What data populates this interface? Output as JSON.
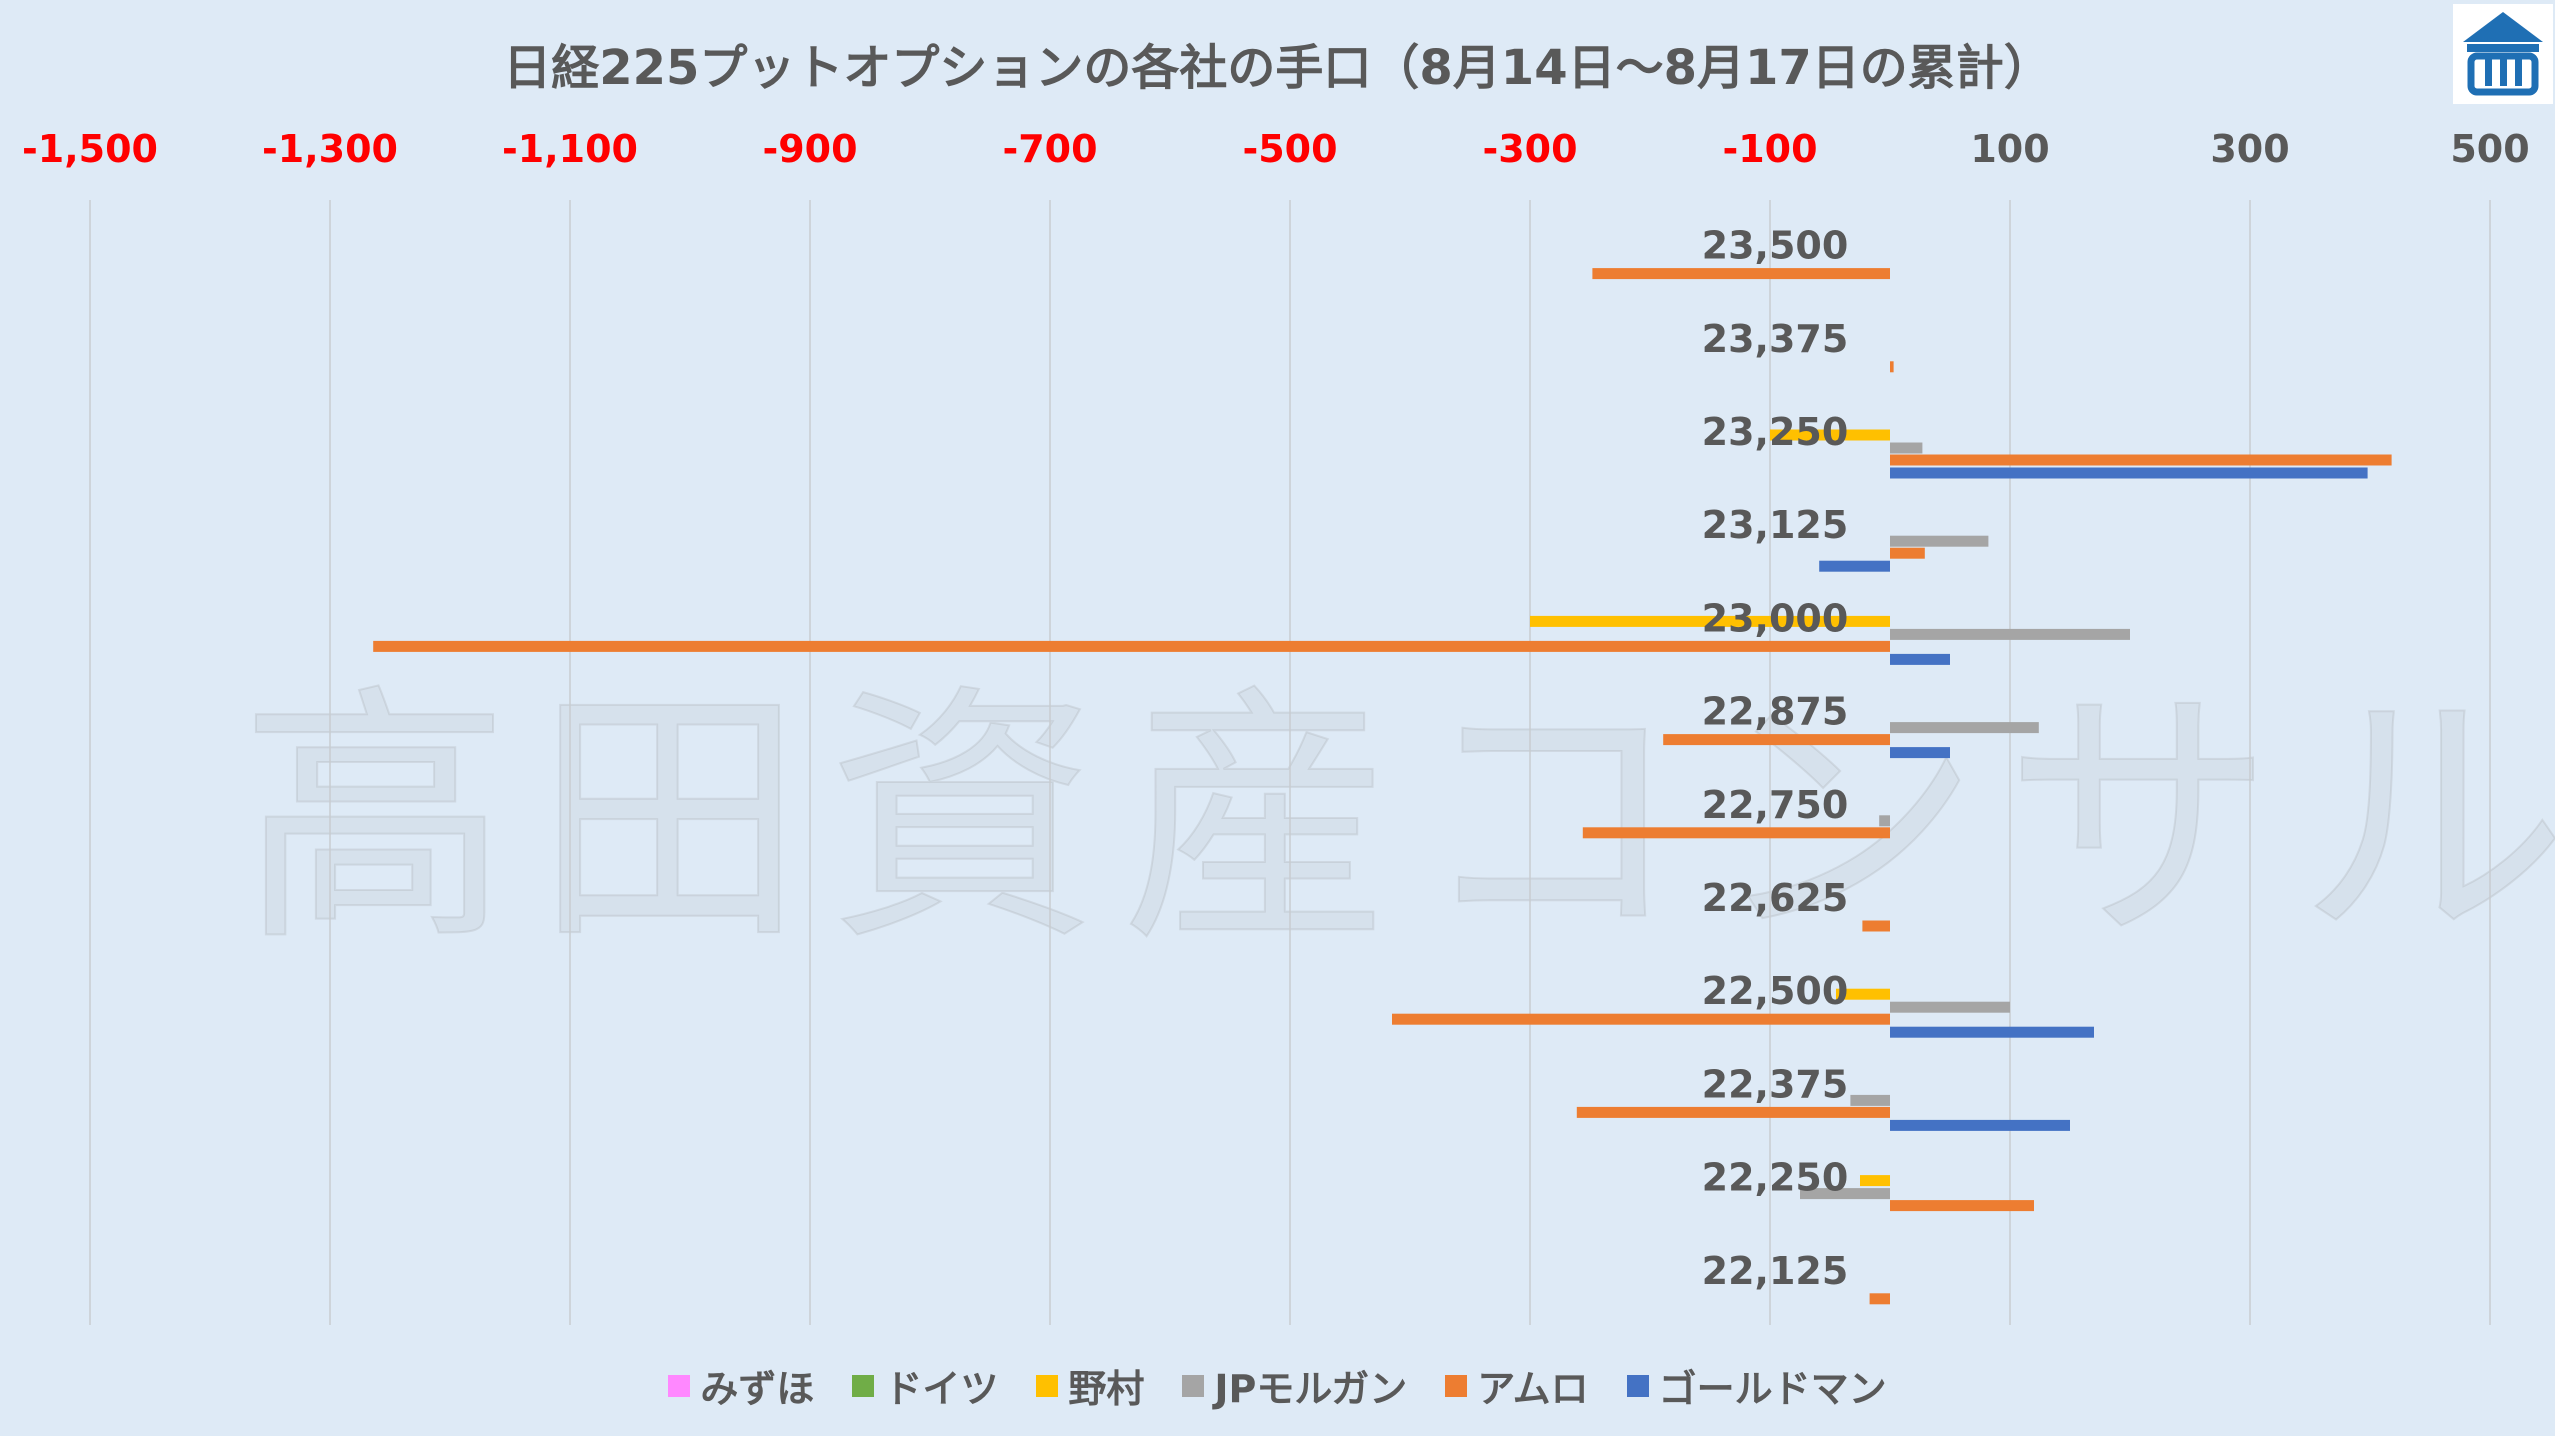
{
  "chart_data": {
    "type": "bar",
    "orientation": "horizontal",
    "title": "日経225プットオプションの各社の手口（8月14日～8月17日の累計）",
    "xlim": [
      -1500,
      500
    ],
    "xticks": [
      "-1,500",
      "-1,300",
      "-1,100",
      "-900",
      "-700",
      "-500",
      "-300",
      "-100",
      "100",
      "300",
      "500"
    ],
    "xtick_values": [
      -1500,
      -1300,
      -1100,
      -900,
      -700,
      -500,
      -300,
      -100,
      100,
      300,
      500
    ],
    "negative_tick_color": "#ff0000",
    "positive_tick_color": "#595959",
    "grid": "vertical",
    "legend_position": "bottom",
    "categories": [
      "23,500",
      "23,375",
      "23,250",
      "23,125",
      "23,000",
      "22,875",
      "22,750",
      "22,625",
      "22,500",
      "22,375",
      "22,250",
      "22,125"
    ],
    "series": [
      {
        "name": "みずほ",
        "color": "#ff88ff",
        "values": [
          0,
          0,
          0,
          0,
          0,
          0,
          0,
          0,
          0,
          0,
          0,
          0
        ]
      },
      {
        "name": "ドイツ",
        "color": "#70ad47",
        "values": [
          0,
          0,
          0,
          0,
          0,
          0,
          0,
          0,
          0,
          0,
          0,
          0
        ]
      },
      {
        "name": "野村",
        "color": "#ffc000",
        "values": [
          0,
          0,
          -100,
          0,
          -300,
          0,
          0,
          0,
          -45,
          0,
          -25,
          0
        ]
      },
      {
        "name": "JPモルガン",
        "color": "#a5a5a5",
        "values": [
          0,
          0,
          27,
          82,
          200,
          124,
          -9,
          0,
          100,
          -33,
          -75,
          0
        ]
      },
      {
        "name": "アムロ",
        "color": "#ed7d31",
        "values": [
          -248,
          3,
          418,
          29,
          -1264,
          -189,
          -256,
          -23,
          -415,
          -261,
          120,
          -17
        ]
      },
      {
        "name": "ゴールドマン",
        "color": "#4472c4",
        "values": [
          0,
          0,
          398,
          -59,
          50,
          50,
          0,
          0,
          170,
          150,
          0,
          0
        ]
      }
    ]
  },
  "watermark": "高田資産コンサル",
  "logo": {
    "icon": "company-logo-icon",
    "color": "#1f6fb4"
  }
}
